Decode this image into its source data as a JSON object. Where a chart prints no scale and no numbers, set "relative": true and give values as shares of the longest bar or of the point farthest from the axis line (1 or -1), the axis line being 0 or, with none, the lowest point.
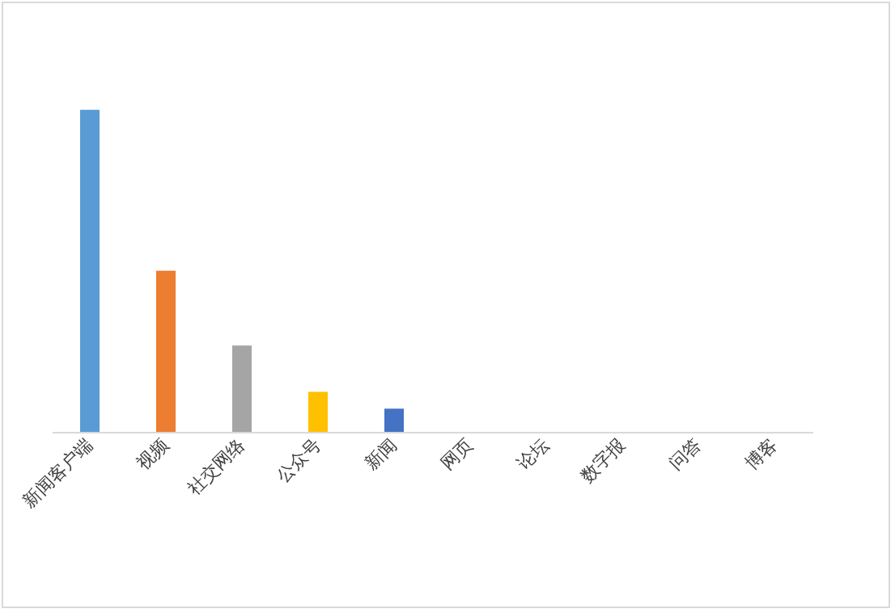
{
  "chart_data": {
    "type": "bar",
    "relative": true,
    "categories": [
      "新闻客户端",
      "视频",
      "社交网络",
      "公众号",
      "新闻",
      "网页",
      "论坛",
      "数字报",
      "问答",
      "博客"
    ],
    "values": [
      1,
      0.5,
      0.268,
      0.124,
      0.072,
      0,
      0,
      0,
      0,
      0
    ],
    "colors": [
      "#5b9bd5",
      "#ed7d31",
      "#a5a5a5",
      "#ffc000",
      "#4472c4",
      "#70ad47",
      "#264478",
      "#9e480e",
      "#636363",
      "#997300"
    ]
  }
}
